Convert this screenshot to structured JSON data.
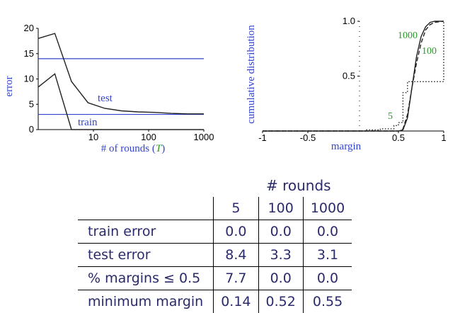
{
  "chart_data": [
    {
      "type": "line",
      "xscale": "log",
      "xlim": [
        1,
        1000
      ],
      "ylim": [
        0,
        20
      ],
      "xlabel": "# of rounds (T)",
      "xlabel_prefix": "# of rounds (",
      "xlabel_var": "T",
      "xlabel_suffix": ")",
      "ylabel": "error",
      "xticks": [
        10,
        100,
        1000
      ],
      "xtick_labels": [
        "10",
        "100",
        "1000"
      ],
      "yticks": [
        0,
        5,
        10,
        15,
        20
      ],
      "ytick_labels": [
        "0",
        "5",
        "10",
        "15",
        "20"
      ],
      "series": [
        {
          "name": "test",
          "x": [
            1,
            2,
            4,
            8,
            16,
            32,
            64,
            128,
            256,
            512,
            1000
          ],
          "y": [
            18,
            19,
            9.5,
            5.3,
            4.2,
            3.7,
            3.5,
            3.4,
            3.2,
            3.1,
            3.1
          ]
        },
        {
          "name": "train",
          "x": [
            1,
            2,
            4,
            8,
            16,
            100,
            1000
          ],
          "y": [
            8.4,
            11,
            0,
            0,
            0,
            0,
            0
          ]
        }
      ],
      "hlines": [
        14,
        3
      ],
      "annotations": [
        "test",
        "train"
      ],
      "colors": {
        "series": "#222222",
        "hline": "#3344cc",
        "label": "#3344cc"
      }
    },
    {
      "type": "line",
      "xlim": [
        -1,
        1
      ],
      "ylim": [
        0,
        1
      ],
      "xlabel": "margin",
      "ylabel": "cumulative distribution",
      "xticks": [
        -1,
        -0.5,
        0.5,
        1
      ],
      "xtick_labels": [
        "-1",
        "-0.5",
        "0.5",
        "1"
      ],
      "yticks": [
        0.5,
        1.0
      ],
      "ytick_labels": [
        "0.5",
        "1.0"
      ],
      "series": [
        {
          "name": "5",
          "x": [
            -1,
            0.0,
            0.14,
            0.3,
            0.45,
            0.5,
            0.55,
            0.6,
            0.65,
            0.7,
            1
          ],
          "y": [
            0,
            0,
            0.01,
            0.02,
            0.05,
            0.077,
            0.35,
            0.45,
            0.45,
            0.45,
            1.0
          ],
          "style": "dotted"
        },
        {
          "name": "100",
          "x": [
            -1,
            0.5,
            0.52,
            0.55,
            0.6,
            0.65,
            0.7,
            0.75,
            0.8,
            0.85,
            0.9,
            1
          ],
          "y": [
            0,
            0,
            0.003,
            0.02,
            0.15,
            0.4,
            0.62,
            0.8,
            0.92,
            0.97,
            0.99,
            1.0
          ],
          "style": "dashed"
        },
        {
          "name": "1000",
          "x": [
            -1,
            0.5,
            0.55,
            0.6,
            0.65,
            0.7,
            0.75,
            0.8,
            0.85,
            0.9,
            0.95,
            1
          ],
          "y": [
            0,
            0,
            0.01,
            0.12,
            0.4,
            0.68,
            0.86,
            0.95,
            0.99,
            1.0,
            1.0,
            1.0
          ],
          "style": "solid"
        }
      ],
      "annotations": [
        "5",
        "100",
        "1000"
      ],
      "colors": {
        "series": "#222222",
        "label": "#2a9a2a",
        "axislabel": "#3344cc"
      }
    },
    {
      "type": "table",
      "title": "# rounds",
      "columns": [
        "5",
        "100",
        "1000"
      ],
      "rows": [
        {
          "label": "train error",
          "values": [
            "0.0",
            "0.0",
            "0.0"
          ]
        },
        {
          "label": "test error",
          "values": [
            "8.4",
            "3.3",
            "3.1"
          ]
        },
        {
          "label": "% margins ≤ 0.5",
          "values": [
            "7.7",
            "0.0",
            "0.0"
          ]
        },
        {
          "label": "minimum margin",
          "values": [
            "0.14",
            "0.52",
            "0.55"
          ]
        }
      ]
    }
  ]
}
